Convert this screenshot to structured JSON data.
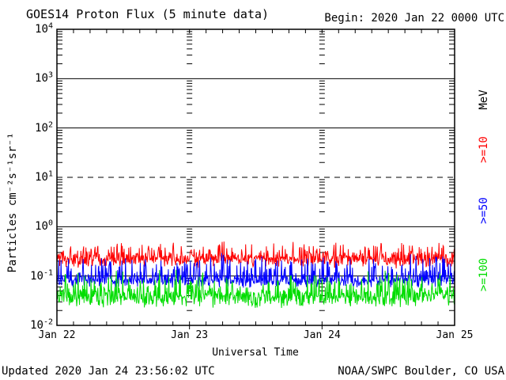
{
  "header": {
    "title": "GOES14 Proton Flux (5 minute data)",
    "begin_label": "Begin: 2020 Jan 22 0000 UTC"
  },
  "footer": {
    "updated": "Updated 2020 Jan 24 23:56:02 UTC",
    "source": "NOAA/SWPC Boulder, CO USA"
  },
  "colors": {
    "text": "#000000",
    "frame": "#000000",
    "red_series": "#ff0000",
    "blue_series": "#0000ff",
    "green_series": "#00dd00"
  },
  "chart_data": {
    "type": "line",
    "title": "GOES14 Proton Flux (5 minute data)",
    "xlabel": "Universal Time",
    "ylabel": "Particles cm⁻²s⁻¹sr⁻¹",
    "legend_unit": "MeV",
    "begin_utc": "2020 Jan 22 0000 UTC",
    "updated_utc": "2020 Jan 24 23:56:02 UTC",
    "x_day_labels": [
      "Jan 22",
      "Jan 23",
      "Jan 24",
      "Jan 25"
    ],
    "x_minor_tick_hours": 3,
    "sample_interval_minutes": 5,
    "y_scale": "log10",
    "y_log_range": [
      -2,
      4
    ],
    "y_ticks": [
      {
        "base": "10",
        "exp": "4"
      },
      {
        "base": "10",
        "exp": "3"
      },
      {
        "base": "10",
        "exp": "2"
      },
      {
        "base": "10",
        "exp": "1"
      },
      {
        "base": "10",
        "exp": "0"
      },
      {
        "base": "10",
        "exp": "-1"
      },
      {
        "base": "10",
        "exp": "-2"
      }
    ],
    "grid": {
      "solid_lines_log": [
        3,
        2,
        0,
        -1
      ],
      "dashed_lines_log": [
        1
      ],
      "minor_log_ticks": true
    },
    "series": [
      {
        "name": ">=10 MeV",
        "legend": ">=10",
        "color": "#ff0000",
        "typical_flux": 0.22,
        "min_flux": 0.12,
        "max_flux": 0.5,
        "log_center": -0.68,
        "log_amp": 0.085,
        "spike_prob": 0.35,
        "spike_amp": 0.3,
        "seed": 101
      },
      {
        "name": ">=50 MeV",
        "legend": ">=50",
        "color": "#0000ff",
        "typical_flux": 0.09,
        "min_flux": 0.05,
        "max_flux": 0.28,
        "log_center": -1.1,
        "log_amp": 0.075,
        "spike_prob": 0.3,
        "spike_amp": 0.48,
        "seed": 202
      },
      {
        "name": ">=100 MeV",
        "legend": ">=100",
        "color": "#00dd00",
        "typical_flux": 0.045,
        "min_flux": 0.022,
        "max_flux": 0.11,
        "log_center": -1.44,
        "log_amp": 0.11,
        "spike_prob": 0.3,
        "spike_amp": 0.44,
        "seed": 303
      }
    ]
  }
}
